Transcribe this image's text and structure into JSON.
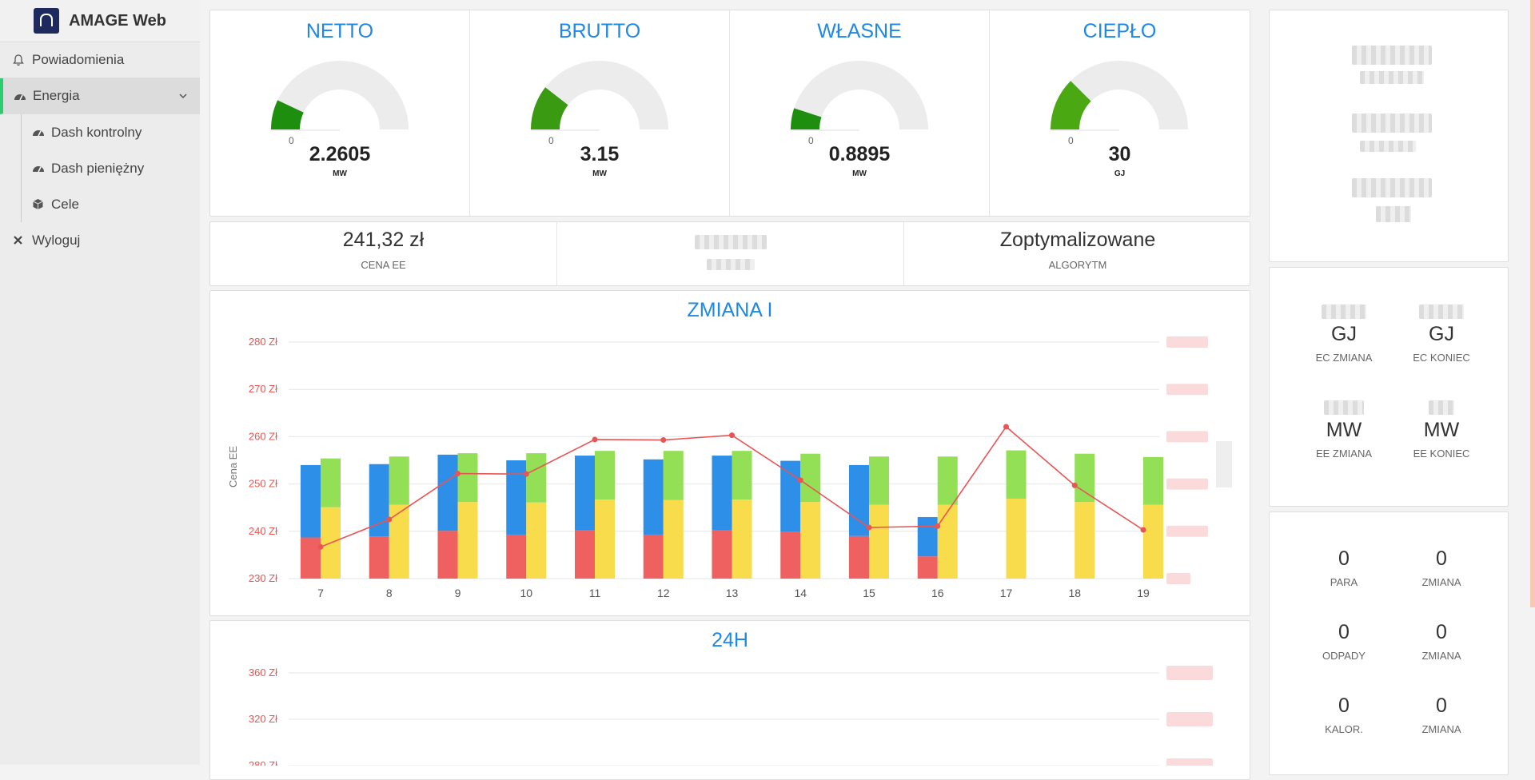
{
  "brand": {
    "name": "AMAGE Web"
  },
  "nav": {
    "notifications": "Powiadomienia",
    "energy": "Energia",
    "dash_control": "Dash kontrolny",
    "dash_money": "Dash pieniężny",
    "goals": "Cele",
    "logout": "Wyloguj"
  },
  "gauges": [
    {
      "title": "NETTO",
      "zero": "0",
      "value": "2.2605",
      "unit": "MW",
      "fraction": 0.14,
      "color": "#1e8e0e"
    },
    {
      "title": "BRUTTO",
      "zero": "0",
      "value": "3.15",
      "unit": "MW",
      "fraction": 0.21,
      "color": "#3a9a12"
    },
    {
      "title": "WŁASNE",
      "zero": "0",
      "value": "0.8895",
      "unit": "MW",
      "fraction": 0.1,
      "color": "#1e8e0e"
    },
    {
      "title": "CIEPŁO",
      "zero": "0",
      "value": "30",
      "unit": "GJ",
      "fraction": 0.25,
      "color": "#4aa812"
    }
  ],
  "info": {
    "price": {
      "value": "241,32 zł",
      "label": "CENA EE"
    },
    "algo": {
      "value": "Zoptymalizowane",
      "label": "ALGORYTM"
    }
  },
  "right_mid": {
    "ec_change": {
      "value": "GJ",
      "label": "EC ZMIANA"
    },
    "ec_end": {
      "value": "GJ",
      "label": "EC KONIEC"
    },
    "ee_change": {
      "value": "MW",
      "label": "EE ZMIANA"
    },
    "ee_end": {
      "value": "MW",
      "label": "EE KONIEC"
    }
  },
  "right_bottom": {
    "para": {
      "value": "0",
      "label": "PARA"
    },
    "zmiana1": {
      "value": "0",
      "label": "ZMIANA"
    },
    "odpady": {
      "value": "0",
      "label": "ODPADY"
    },
    "zmiana2": {
      "value": "0",
      "label": "ZMIANA"
    },
    "kalor": {
      "value": "0",
      "label": "KALOR."
    },
    "zmiana3": {
      "value": "0",
      "label": "ZMIANA"
    }
  },
  "chart_data": [
    {
      "type": "bar",
      "title": "ZMIANA I",
      "ylabel": "Cena EE",
      "ylim": [
        230,
        280
      ],
      "yticks": [
        "230 Zł",
        "240 Zł",
        "250 Zł",
        "260 Zł",
        "270 Zł",
        "280 Zł"
      ],
      "categories": [
        "7",
        "8",
        "9",
        "10",
        "11",
        "12",
        "13",
        "14",
        "15",
        "16",
        "17",
        "18",
        "19"
      ],
      "stack_a": {
        "red": [
          238.7,
          238.9,
          240.1,
          239.3,
          240.3,
          239.3,
          240.3,
          239.9,
          239.0,
          234.7,
          null,
          null,
          null
        ],
        "blue": [
          254.0,
          254.2,
          256.2,
          255.0,
          256.0,
          255.2,
          256.0,
          254.9,
          254.0,
          243.0,
          null,
          null,
          null
        ]
      },
      "stack_b": {
        "yellow": [
          245.1,
          245.6,
          246.2,
          246.1,
          246.7,
          246.6,
          246.7,
          246.2,
          245.6,
          245.6,
          246.9,
          246.2,
          245.6
        ],
        "green": [
          255.4,
          255.8,
          256.5,
          256.5,
          257.0,
          257.0,
          257.0,
          256.4,
          255.8,
          255.8,
          257.1,
          256.4,
          255.7
        ]
      },
      "price_line": [
        236.7,
        242.5,
        252.2,
        252.1,
        259.4,
        259.3,
        260.3,
        250.8,
        240.8,
        241.1,
        262.1,
        249.7,
        240.3
      ],
      "colors": {
        "red": "#ef6161",
        "blue": "#2e8fe8",
        "yellow": "#f8dc4b",
        "green": "#93df55",
        "line": "#ea5455"
      }
    },
    {
      "type": "bar",
      "title": "24H",
      "yticks": [
        "360 Zł",
        "320 Zł",
        "280 Zł"
      ],
      "ylim": [
        280,
        360
      ]
    }
  ]
}
